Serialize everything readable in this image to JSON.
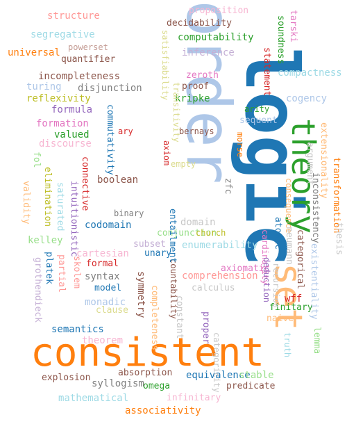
{
  "words": [
    {
      "text": "logic",
      "color": "#1f77b4"
    },
    {
      "text": "order",
      "color": "#aec7e8"
    },
    {
      "text": "consistent",
      "color": "#ff7f0e"
    },
    {
      "text": "theory",
      "color": "#2ca02c"
    },
    {
      "text": "set",
      "color": "#ffbb78"
    },
    {
      "text": "structure",
      "color": "#ff9896"
    },
    {
      "text": "proposition",
      "color": "#f7b6d2"
    },
    {
      "text": "decidability",
      "color": "#8c564b"
    },
    {
      "text": "computability",
      "color": "#2ca02c"
    },
    {
      "text": "segregative",
      "color": "#9edae5"
    },
    {
      "text": "powerset",
      "color": "#c49c94"
    },
    {
      "text": "quantifier",
      "color": "#8c564b"
    },
    {
      "text": "universal",
      "color": "#ff7f0e"
    },
    {
      "text": "inference",
      "color": "#c5b0d5"
    },
    {
      "text": "incompleteness",
      "color": "#8c564b"
    },
    {
      "text": "turing",
      "color": "#aec7e8"
    },
    {
      "text": "disjunction",
      "color": "#7f7f7f"
    },
    {
      "text": "reflexivity",
      "color": "#bcbd22"
    },
    {
      "text": "formula",
      "color": "#9467bd"
    },
    {
      "text": "formation",
      "color": "#e377c2"
    },
    {
      "text": "valued",
      "color": "#2ca02c"
    },
    {
      "text": "discourse",
      "color": "#f7b6d2"
    },
    {
      "text": "zeroth",
      "color": "#e377c2"
    },
    {
      "text": "proof",
      "color": "#8c564b"
    },
    {
      "text": "kripke",
      "color": "#2ca02c"
    },
    {
      "text": "cogency",
      "color": "#aec7e8"
    },
    {
      "text": "arity",
      "color": "#2ca02c"
    },
    {
      "text": "compactness",
      "color": "#9edae5"
    },
    {
      "text": "sequent",
      "color": "#aec7e8"
    },
    {
      "text": "ary",
      "color": "#d62728"
    },
    {
      "text": "bernays",
      "color": "#8c564b"
    },
    {
      "text": "empty",
      "color": "#dbdb8d"
    },
    {
      "text": "boolean",
      "color": "#8c564b"
    },
    {
      "text": "binary",
      "color": "#7f7f7f"
    },
    {
      "text": "codomain",
      "color": "#1f77b4"
    },
    {
      "text": "domain",
      "color": "#c7c7c7"
    },
    {
      "text": "conjunction",
      "color": "#98df8a"
    },
    {
      "text": "church",
      "color": "#bcbd22"
    },
    {
      "text": "kelley",
      "color": "#98df8a"
    },
    {
      "text": "subset",
      "color": "#c5b0d5"
    },
    {
      "text": "enumerability",
      "color": "#9edae5"
    },
    {
      "text": "cartesian",
      "color": "#f7b6d2"
    },
    {
      "text": "unary",
      "color": "#1f77b4"
    },
    {
      "text": "formal",
      "color": "#d62728"
    },
    {
      "text": "syntax",
      "color": "#7f7f7f"
    },
    {
      "text": "comprehension",
      "color": "#ff9896"
    },
    {
      "text": "axiomatic",
      "color": "#e377c2"
    },
    {
      "text": "model",
      "color": "#1f77b4"
    },
    {
      "text": "calculus",
      "color": "#c7c7c7"
    },
    {
      "text": "monadic",
      "color": "#aec7e8"
    },
    {
      "text": "clause",
      "color": "#dbdb8d"
    },
    {
      "text": "wff",
      "color": "#d62728"
    },
    {
      "text": "naive",
      "color": "#ffbb78"
    },
    {
      "text": "finitary",
      "color": "#2ca02c"
    },
    {
      "text": "semantics",
      "color": "#1f77b4"
    },
    {
      "text": "theorem",
      "color": "#f7b6d2"
    },
    {
      "text": "equivalence",
      "color": "#1f77b4"
    },
    {
      "text": "stable",
      "color": "#98df8a"
    },
    {
      "text": "explosion",
      "color": "#8c564b"
    },
    {
      "text": "absorption",
      "color": "#8c564b"
    },
    {
      "text": "syllogism",
      "color": "#7f7f7f"
    },
    {
      "text": "omega",
      "color": "#2ca02c"
    },
    {
      "text": "predicate",
      "color": "#8c564b"
    },
    {
      "text": "mathematical",
      "color": "#9edae5"
    },
    {
      "text": "infinitary",
      "color": "#f7b6d2"
    },
    {
      "text": "associativity",
      "color": "#ff7f0e"
    },
    {
      "text": "satisfiability",
      "color": "#dbdb8d"
    },
    {
      "text": "transitivity",
      "color": "#dbdb8d"
    },
    {
      "text": "commutativity",
      "color": "#1f77b4"
    },
    {
      "text": "axiom",
      "color": "#d62728"
    },
    {
      "text": "connective",
      "color": "#d62728"
    },
    {
      "text": "fol",
      "color": "#98df8a"
    },
    {
      "text": "elimination",
      "color": "#bcbd22"
    },
    {
      "text": "validity",
      "color": "#ffbb78"
    },
    {
      "text": "saturated",
      "color": "#9edae5"
    },
    {
      "text": "intuitionistic",
      "color": "#9467bd"
    },
    {
      "text": "platek",
      "color": "#1f77b4"
    },
    {
      "text": "partial",
      "color": "#ff9896"
    },
    {
      "text": "grothendieck",
      "color": "#c5b0d5"
    },
    {
      "text": "skolem",
      "color": "#ff9896"
    },
    {
      "text": "symmetry",
      "color": "#8c564b"
    },
    {
      "text": "countability",
      "color": "#8c564b"
    },
    {
      "text": "completeness",
      "color": "#ffbb78"
    },
    {
      "text": "constant",
      "color": "#c7c7c7"
    },
    {
      "text": "entailment",
      "color": "#1f77b4"
    },
    {
      "text": "morse",
      "color": "#ff7f0e"
    },
    {
      "text": "zfc",
      "color": "#7f7f7f"
    },
    {
      "text": "cardinality",
      "color": "#e377c2"
    },
    {
      "text": "consequence",
      "color": "#ffbb78"
    },
    {
      "text": "atomic",
      "color": "#1f77b4"
    },
    {
      "text": "neumann",
      "color": "#c7c7c7"
    },
    {
      "text": "categorical",
      "color": "#8c564b"
    },
    {
      "text": "deduction",
      "color": "#9467bd"
    },
    {
      "text": "recursion",
      "color": "#c7c7c7"
    },
    {
      "text": "proper",
      "color": "#9467bd"
    },
    {
      "text": "categoricity",
      "color": "#c7c7c7"
    },
    {
      "text": "truth",
      "color": "#9edae5"
    },
    {
      "text": "lemma",
      "color": "#98df8a"
    },
    {
      "text": "tarski",
      "color": "#e377c2"
    },
    {
      "text": "soundness",
      "color": "#2ca02c"
    },
    {
      "text": "statement",
      "color": "#d62728"
    },
    {
      "text": "extensionality",
      "color": "#ffbb78"
    },
    {
      "text": "argument",
      "color": "#c7c7c7"
    },
    {
      "text": "inconsistency",
      "color": "#7f7f7f"
    },
    {
      "text": "existentiality",
      "color": "#aec7e8"
    },
    {
      "text": "transformation",
      "color": "#ff7f0e"
    },
    {
      "text": "thesis",
      "color": "#c7c7c7"
    },
    {
      "text": "uncountable",
      "color": "#1f77b4"
    },
    {
      "text": "wenheim",
      "color": "#98df8a"
    }
  ]
}
